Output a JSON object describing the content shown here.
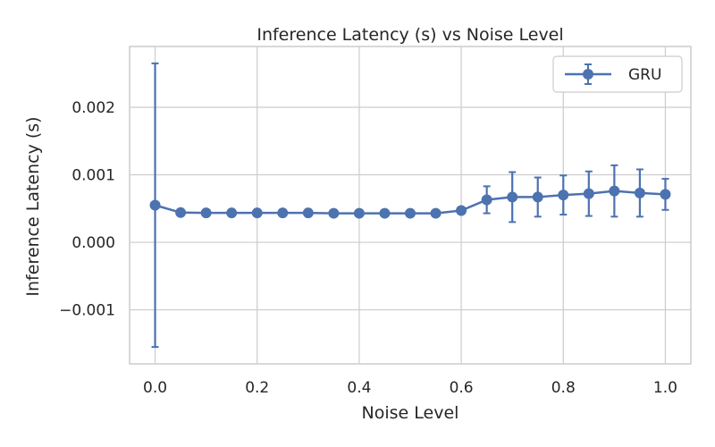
{
  "chart_data": {
    "type": "line",
    "title": "Inference Latency (s) vs Noise Level",
    "xlabel": "Noise Level",
    "ylabel": "Inference Latency (s)",
    "xlim": [
      -0.05,
      1.05
    ],
    "ylim": [
      -0.0018,
      0.0029
    ],
    "xticks": [
      0.0,
      0.2,
      0.4,
      0.6,
      0.8,
      1.0
    ],
    "xtick_labels": [
      "0.0",
      "0.2",
      "0.4",
      "0.6",
      "0.8",
      "1.0"
    ],
    "yticks": [
      -0.001,
      0.0,
      0.001,
      0.002
    ],
    "ytick_labels": [
      "−0.001",
      "0.000",
      "0.001",
      "0.002"
    ],
    "grid": true,
    "legend_position": "top-right",
    "series": [
      {
        "name": "GRU",
        "color": "#4c72b0",
        "x": [
          0.0,
          0.05,
          0.1,
          0.15,
          0.2,
          0.25,
          0.3,
          0.35,
          0.4,
          0.45,
          0.5,
          0.55,
          0.6,
          0.65,
          0.7,
          0.75,
          0.8,
          0.85,
          0.9,
          0.95,
          1.0
        ],
        "y": [
          0.00055,
          0.00044,
          0.000435,
          0.000435,
          0.000435,
          0.000435,
          0.000435,
          0.00043,
          0.00043,
          0.00043,
          0.00043,
          0.00043,
          0.00047,
          0.00063,
          0.00067,
          0.00067,
          0.0007,
          0.00072,
          0.00076,
          0.00073,
          0.00071
        ],
        "yerr": [
          0.0021,
          0,
          0,
          0,
          0,
          0,
          0,
          0,
          0,
          0,
          0,
          0,
          0,
          0.0002,
          0.00037,
          0.00029,
          0.00029,
          0.00033,
          0.00038,
          0.00035,
          0.00023
        ]
      }
    ]
  }
}
